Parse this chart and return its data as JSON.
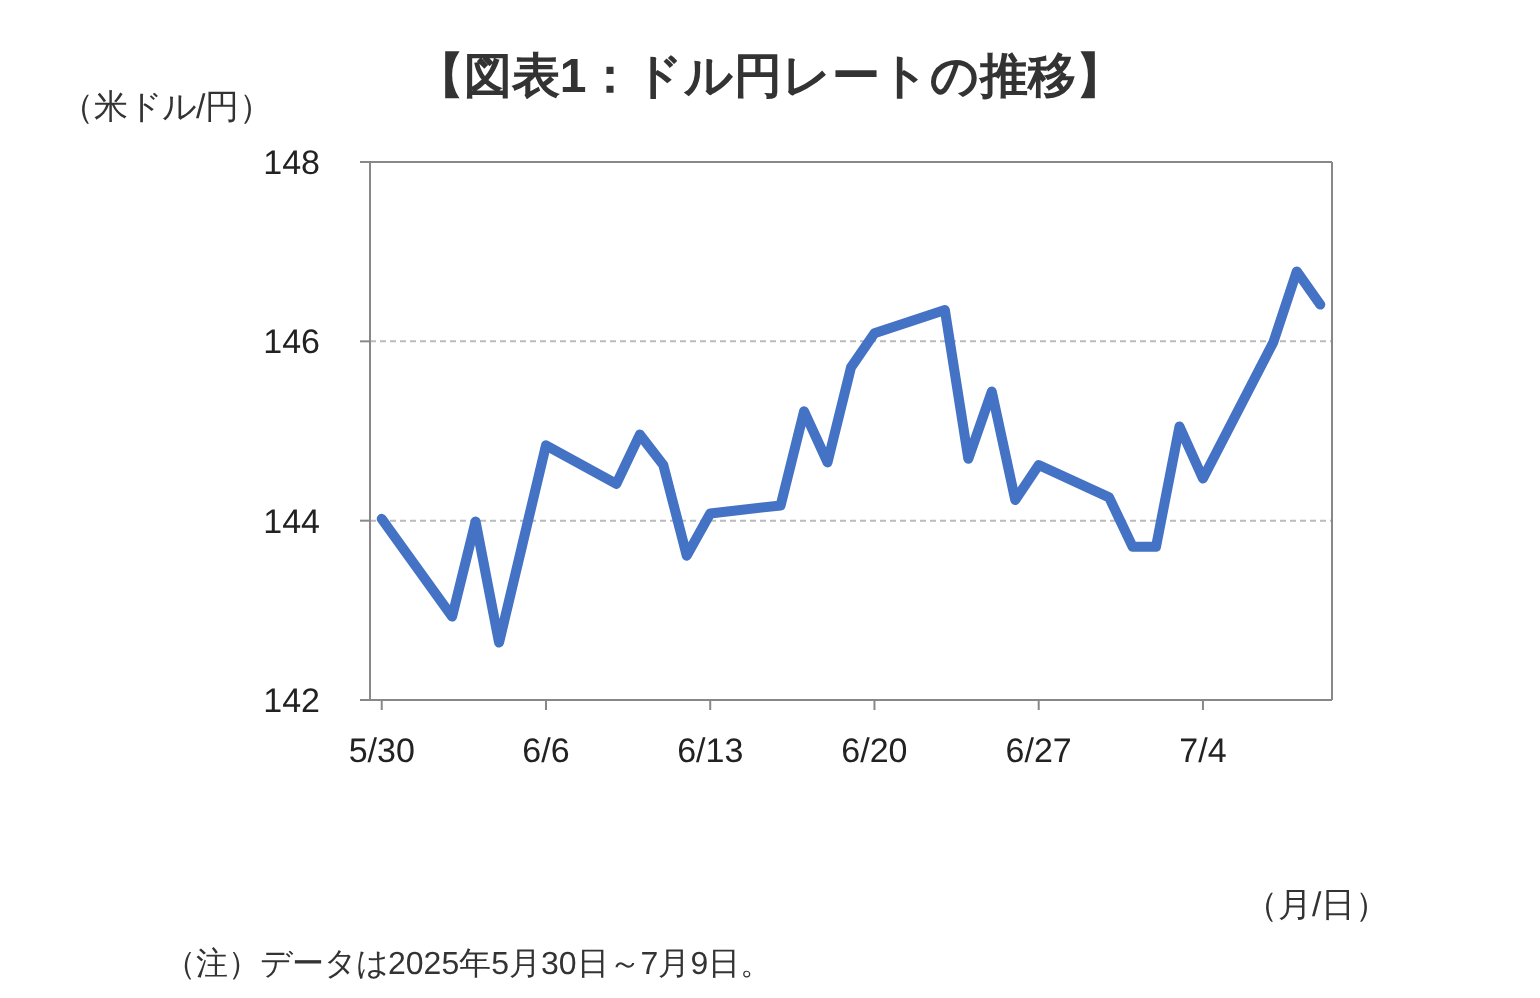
{
  "chart_data": {
    "type": "line",
    "title": "【図表1：ドル円レートの推移】",
    "ylabel": "（米ドル/円）",
    "xlabel": "（月/日）",
    "annotations": [
      "（注）データは2025年5月30日～7月9日。"
    ],
    "x": [
      "2025-05-30",
      "2025-06-02",
      "2025-06-03",
      "2025-06-04",
      "2025-06-05",
      "2025-06-06",
      "2025-06-09",
      "2025-06-10",
      "2025-06-11",
      "2025-06-12",
      "2025-06-13",
      "2025-06-16",
      "2025-06-17",
      "2025-06-18",
      "2025-06-19",
      "2025-06-20",
      "2025-06-23",
      "2025-06-24",
      "2025-06-25",
      "2025-06-26",
      "2025-06-27",
      "2025-06-30",
      "2025-07-01",
      "2025-07-02",
      "2025-07-03",
      "2025-07-04",
      "2025-07-07",
      "2025-07-08",
      "2025-07-09"
    ],
    "series": [
      {
        "color": "#4472c4",
        "values": [
          144.02,
          142.93,
          143.99,
          142.64,
          143.74,
          144.84,
          144.41,
          144.96,
          144.62,
          143.61,
          144.08,
          144.17,
          145.22,
          144.65,
          145.71,
          146.09,
          146.35,
          144.69,
          145.44,
          144.23,
          144.62,
          144.26,
          143.71,
          143.71,
          145.05,
          144.47,
          145.99,
          146.78,
          146.41
        ]
      }
    ],
    "xlim": [
      "2025-05-29T12:00",
      "2025-07-09T12:00"
    ],
    "xticks": [
      {
        "value": "2025-05-30",
        "label": "5/30"
      },
      {
        "value": "2025-06-06",
        "label": "6/6"
      },
      {
        "value": "2025-06-13",
        "label": "6/13"
      },
      {
        "value": "2025-06-20",
        "label": "6/20"
      },
      {
        "value": "2025-06-27",
        "label": "6/27"
      },
      {
        "value": "2025-07-04",
        "label": "7/4"
      }
    ],
    "ylim": [
      142,
      148
    ],
    "yticks": [
      142,
      144,
      146,
      148
    ],
    "grid": "y",
    "marker": "none",
    "line_style": "solid",
    "legend": false
  }
}
